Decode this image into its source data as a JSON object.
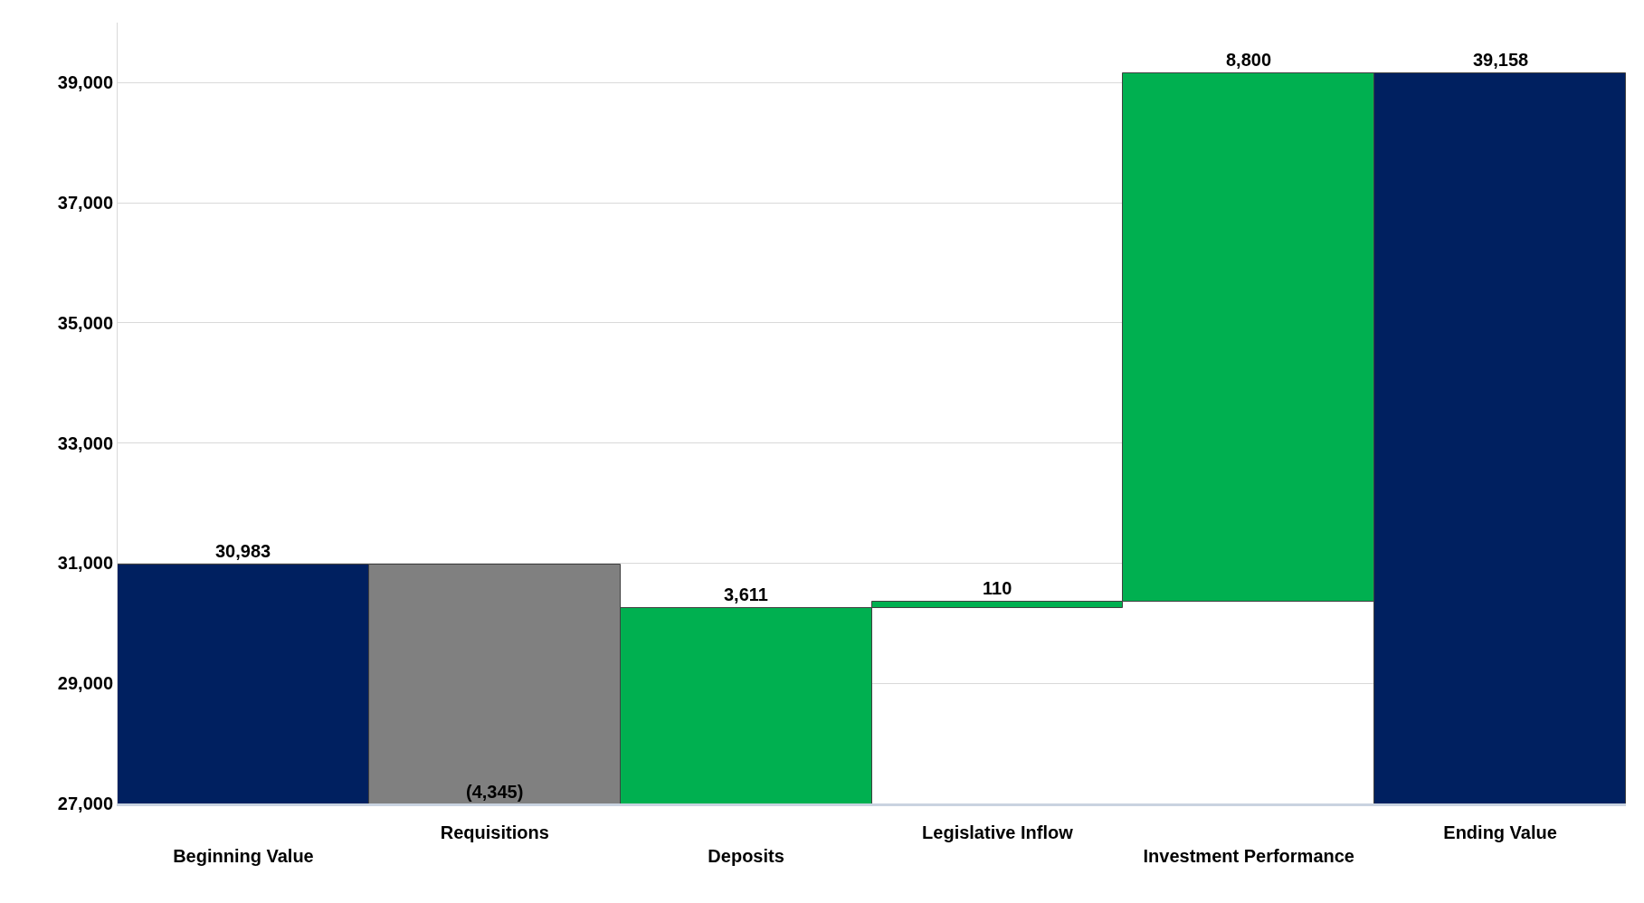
{
  "chart_data": {
    "type": "bar",
    "categories": [
      "Beginning Value",
      "Requisitions",
      "Deposits",
      "Legislative Inflow",
      "Investment Performance",
      "Ending Value"
    ],
    "values": [
      30983,
      -4345,
      3611,
      110,
      8800,
      39158
    ],
    "base": [
      null,
      30983,
      26638,
      30249,
      30359,
      null
    ],
    "colors": [
      "#002060",
      "#808080",
      "#00b050",
      "#00b050",
      "#00b050",
      "#002060"
    ],
    "value_labels": [
      "30,983",
      "(4,345)",
      "3,611",
      "110",
      "8,800",
      "39,158"
    ],
    "ylim": [
      27000,
      40000
    ],
    "yticks": [
      {
        "value": 27000,
        "label": "27,000"
      },
      {
        "value": 29000,
        "label": "29,000"
      },
      {
        "value": 31000,
        "label": "31,000"
      },
      {
        "value": 33000,
        "label": "33,000"
      },
      {
        "value": 35000,
        "label": "35,000"
      },
      {
        "value": 37000,
        "label": "37,000"
      },
      {
        "value": 39000,
        "label": "39,000"
      }
    ],
    "grid": "y"
  }
}
